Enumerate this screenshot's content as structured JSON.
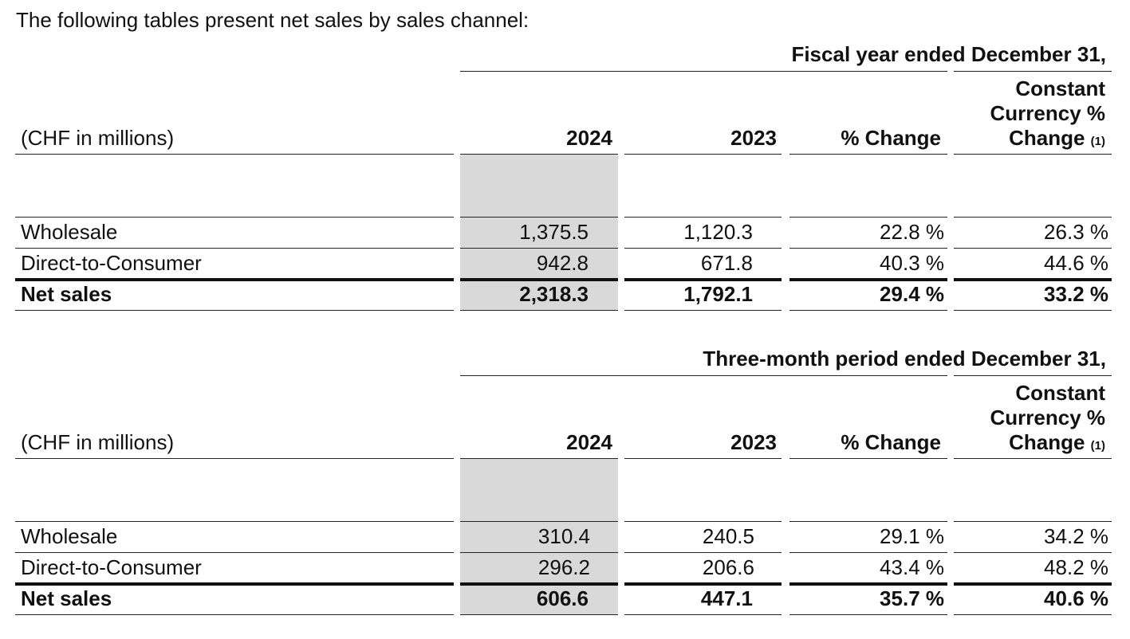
{
  "intro": "The following tables present net sales by sales channel:",
  "tables": [
    {
      "period": "Fiscal year ended December 31,",
      "unit_label": "(CHF in millions)",
      "col_2024": "2024",
      "col_2023": "2023",
      "col_change": "% Change",
      "col_cc_line1": "Constant",
      "col_cc_line2": "Currency %",
      "col_cc_line3": "Change",
      "col_cc_note": "(1)",
      "rows": [
        {
          "label": "Wholesale",
          "v2024": "1,375.5",
          "v2023": "1,120.3",
          "change": "22.8 %",
          "cc": "26.3 %"
        },
        {
          "label": "Direct-to-Consumer",
          "v2024": "942.8",
          "v2023": "671.8",
          "change": "40.3 %",
          "cc": "44.6 %"
        },
        {
          "label": "Net sales",
          "v2024": "2,318.3",
          "v2023": "1,792.1",
          "change": "29.4 %",
          "cc": "33.2 %"
        }
      ]
    },
    {
      "period": "Three-month period ended December 31,",
      "unit_label": "(CHF in millions)",
      "col_2024": "2024",
      "col_2023": "2023",
      "col_change": "% Change",
      "col_cc_line1": "Constant",
      "col_cc_line2": "Currency %",
      "col_cc_line3": "Change",
      "col_cc_note": "(1)",
      "rows": [
        {
          "label": "Wholesale",
          "v2024": "310.4",
          "v2023": "240.5",
          "change": "29.1 %",
          "cc": "34.2 %"
        },
        {
          "label": "Direct-to-Consumer",
          "v2024": "296.2",
          "v2023": "206.6",
          "change": "43.4 %",
          "cc": "48.2 %"
        },
        {
          "label": "Net sales",
          "v2024": "606.6",
          "v2023": "447.1",
          "change": "35.7 %",
          "cc": "40.6 %"
        }
      ]
    }
  ]
}
